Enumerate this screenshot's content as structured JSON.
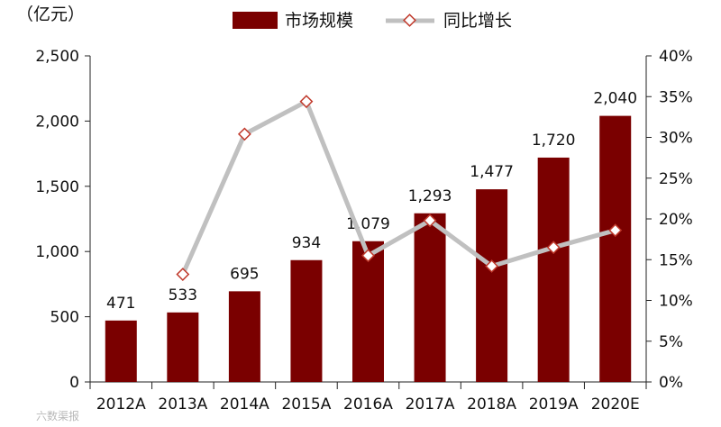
{
  "chart_data": {
    "type": "bar",
    "unit_label": "（亿元）",
    "categories": [
      "2012A",
      "2013A",
      "2014A",
      "2015A",
      "2016A",
      "2017A",
      "2018A",
      "2019A",
      "2020E"
    ],
    "series": [
      {
        "name": "市场规模",
        "type": "bar",
        "axis": "left",
        "color": "#7a0000",
        "values": [
          471,
          533,
          695,
          934,
          1079,
          1293,
          1477,
          1720,
          2040
        ],
        "labels": [
          "471",
          "533",
          "695",
          "934",
          "1,079",
          "1,293",
          "1,477",
          "1,720",
          "2,040"
        ]
      },
      {
        "name": "同比增长",
        "type": "line",
        "axis": "right",
        "color": "#c0c0c0",
        "marker_color": "#c0392b",
        "values": [
          null,
          13.2,
          30.4,
          34.4,
          15.5,
          19.8,
          14.2,
          16.5,
          18.6
        ]
      }
    ],
    "y_left": {
      "min": 0,
      "max": 2500,
      "ticks": [
        0,
        500,
        1000,
        1500,
        2000,
        2500
      ],
      "tick_labels": [
        "0",
        "500",
        "1,000",
        "1,500",
        "2,000",
        "2,500"
      ]
    },
    "y_right": {
      "min": 0,
      "max": 40,
      "ticks": [
        0,
        5,
        10,
        15,
        20,
        25,
        30,
        35,
        40
      ],
      "tick_labels": [
        "0%",
        "5%",
        "10%",
        "15%",
        "20%",
        "25%",
        "30%",
        "35%",
        "40%"
      ]
    },
    "legend_position": "top",
    "grid": false
  },
  "watermark": "六数渠报"
}
